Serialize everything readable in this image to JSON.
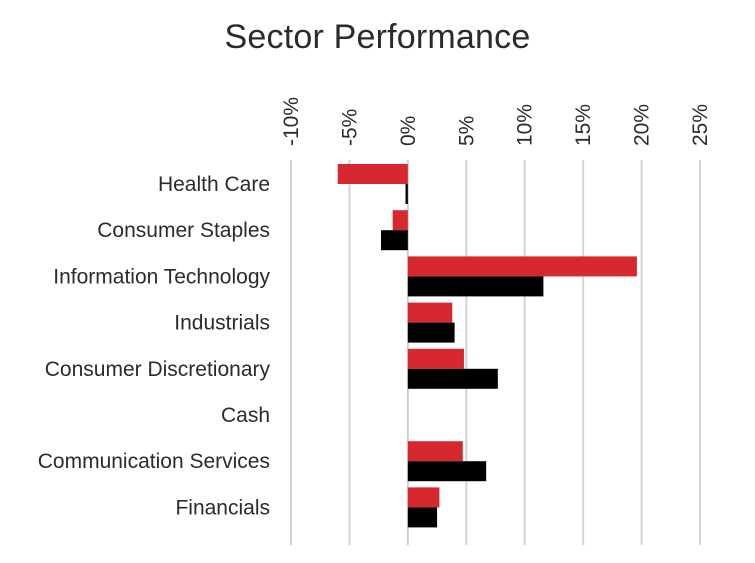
{
  "chart_data": {
    "type": "bar",
    "orientation": "horizontal",
    "title": "Sector Performance",
    "xlabel": "",
    "ylabel": "",
    "xlim": [
      -10,
      25
    ],
    "x_ticks": [
      -10,
      -5,
      0,
      5,
      10,
      15,
      20,
      25
    ],
    "x_tick_labels": [
      "-10%",
      "-5%",
      "0%",
      "5%",
      "10%",
      "15%",
      "20%",
      "25%"
    ],
    "tick_label_rotation": "vertical",
    "grid": true,
    "legend": "none",
    "categories": [
      "Health Care",
      "Consumer Staples",
      "Information Technology",
      "Industrials",
      "Consumer Discretionary",
      "Cash",
      "Communication Services",
      "Financials"
    ],
    "series": [
      {
        "color": "#d7282f",
        "values": [
          -6.0,
          -1.3,
          19.6,
          3.8,
          4.8,
          0,
          4.7,
          2.7
        ]
      },
      {
        "color": "#000000",
        "values": [
          -0.2,
          -2.3,
          11.6,
          4.0,
          7.7,
          0,
          6.7,
          2.5
        ]
      }
    ]
  }
}
